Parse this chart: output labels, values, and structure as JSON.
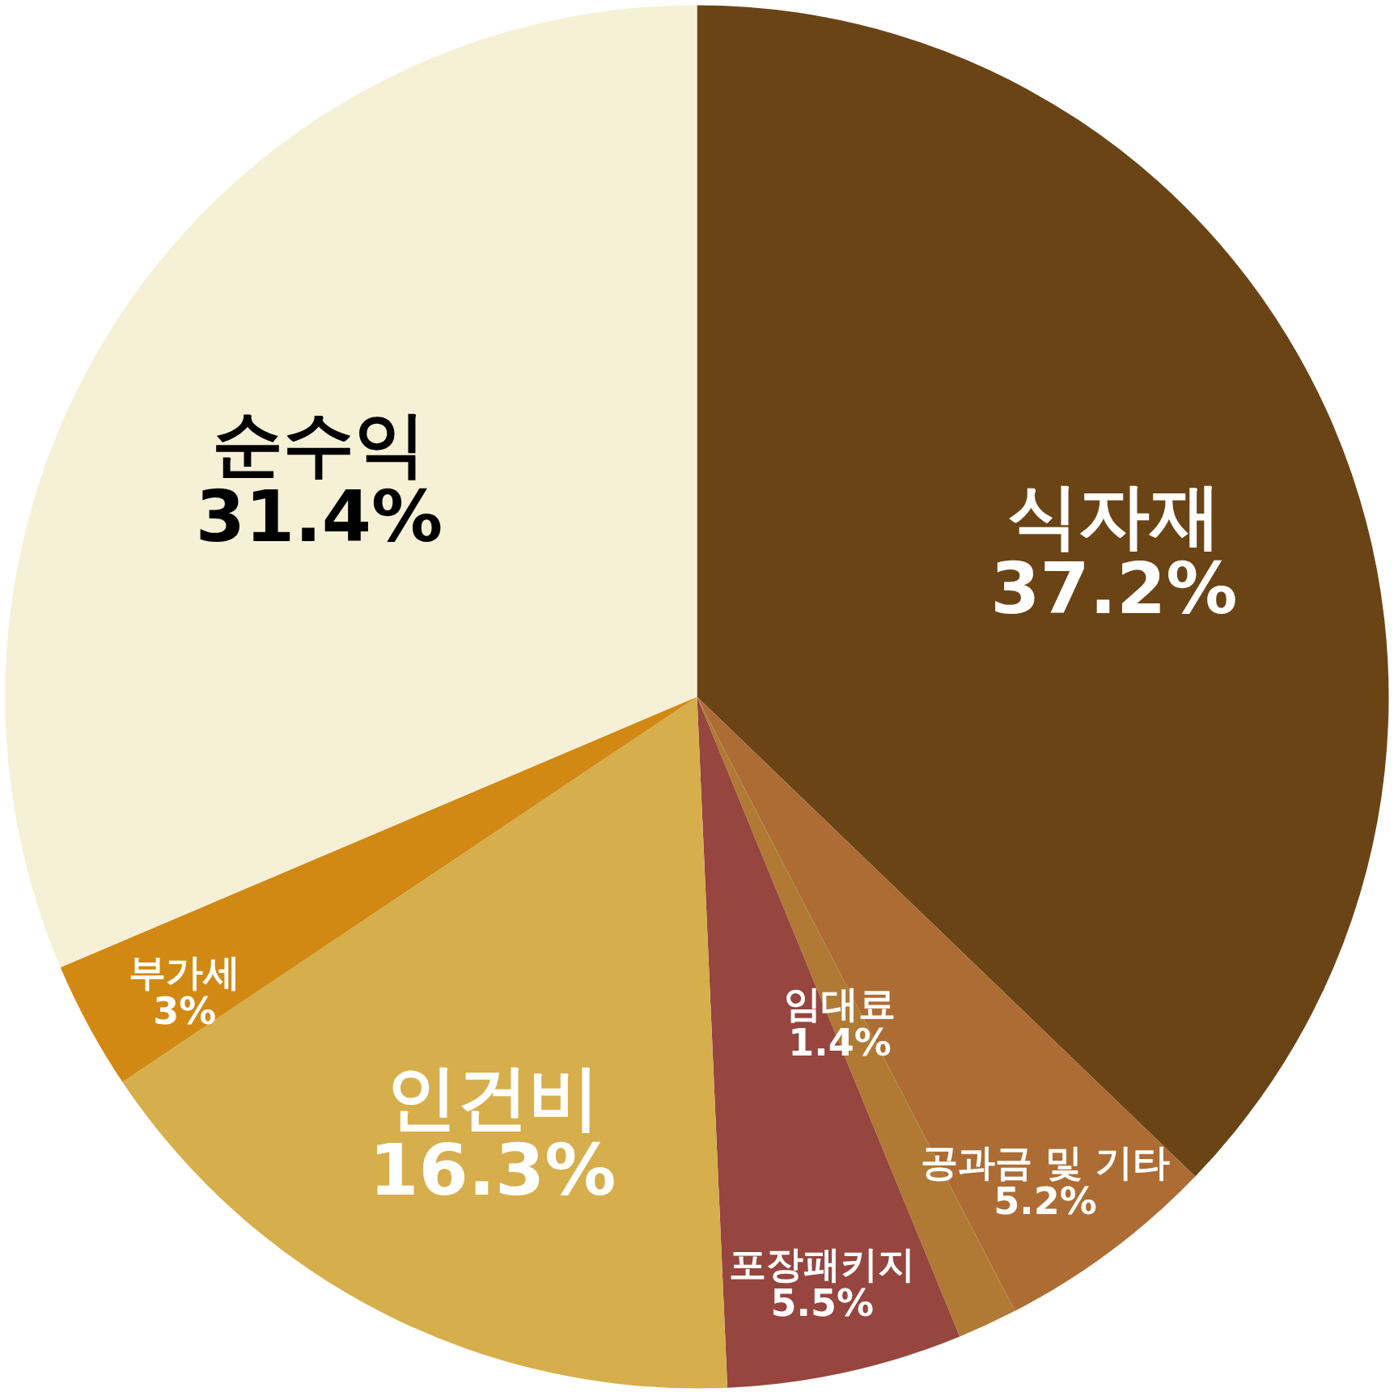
{
  "chart_data": {
    "type": "pie",
    "categories": [
      "식자재",
      "공과금 및 기타",
      "임대료",
      "포장패키지",
      "인건비",
      "부가세",
      "순수익"
    ],
    "values": [
      37.2,
      5.2,
      1.4,
      5.5,
      16.3,
      3,
      31.4
    ],
    "value_labels": [
      "37.2%",
      "5.2%",
      "1.4%",
      "5.5%",
      "16.3%",
      "3%",
      "31.4%"
    ],
    "colors": [
      "#6b4416",
      "#ad6c33",
      "#b07a35",
      "#96453f",
      "#d6ae4c",
      "#d18913",
      "#f6f0d6"
    ],
    "legend": false
  }
}
